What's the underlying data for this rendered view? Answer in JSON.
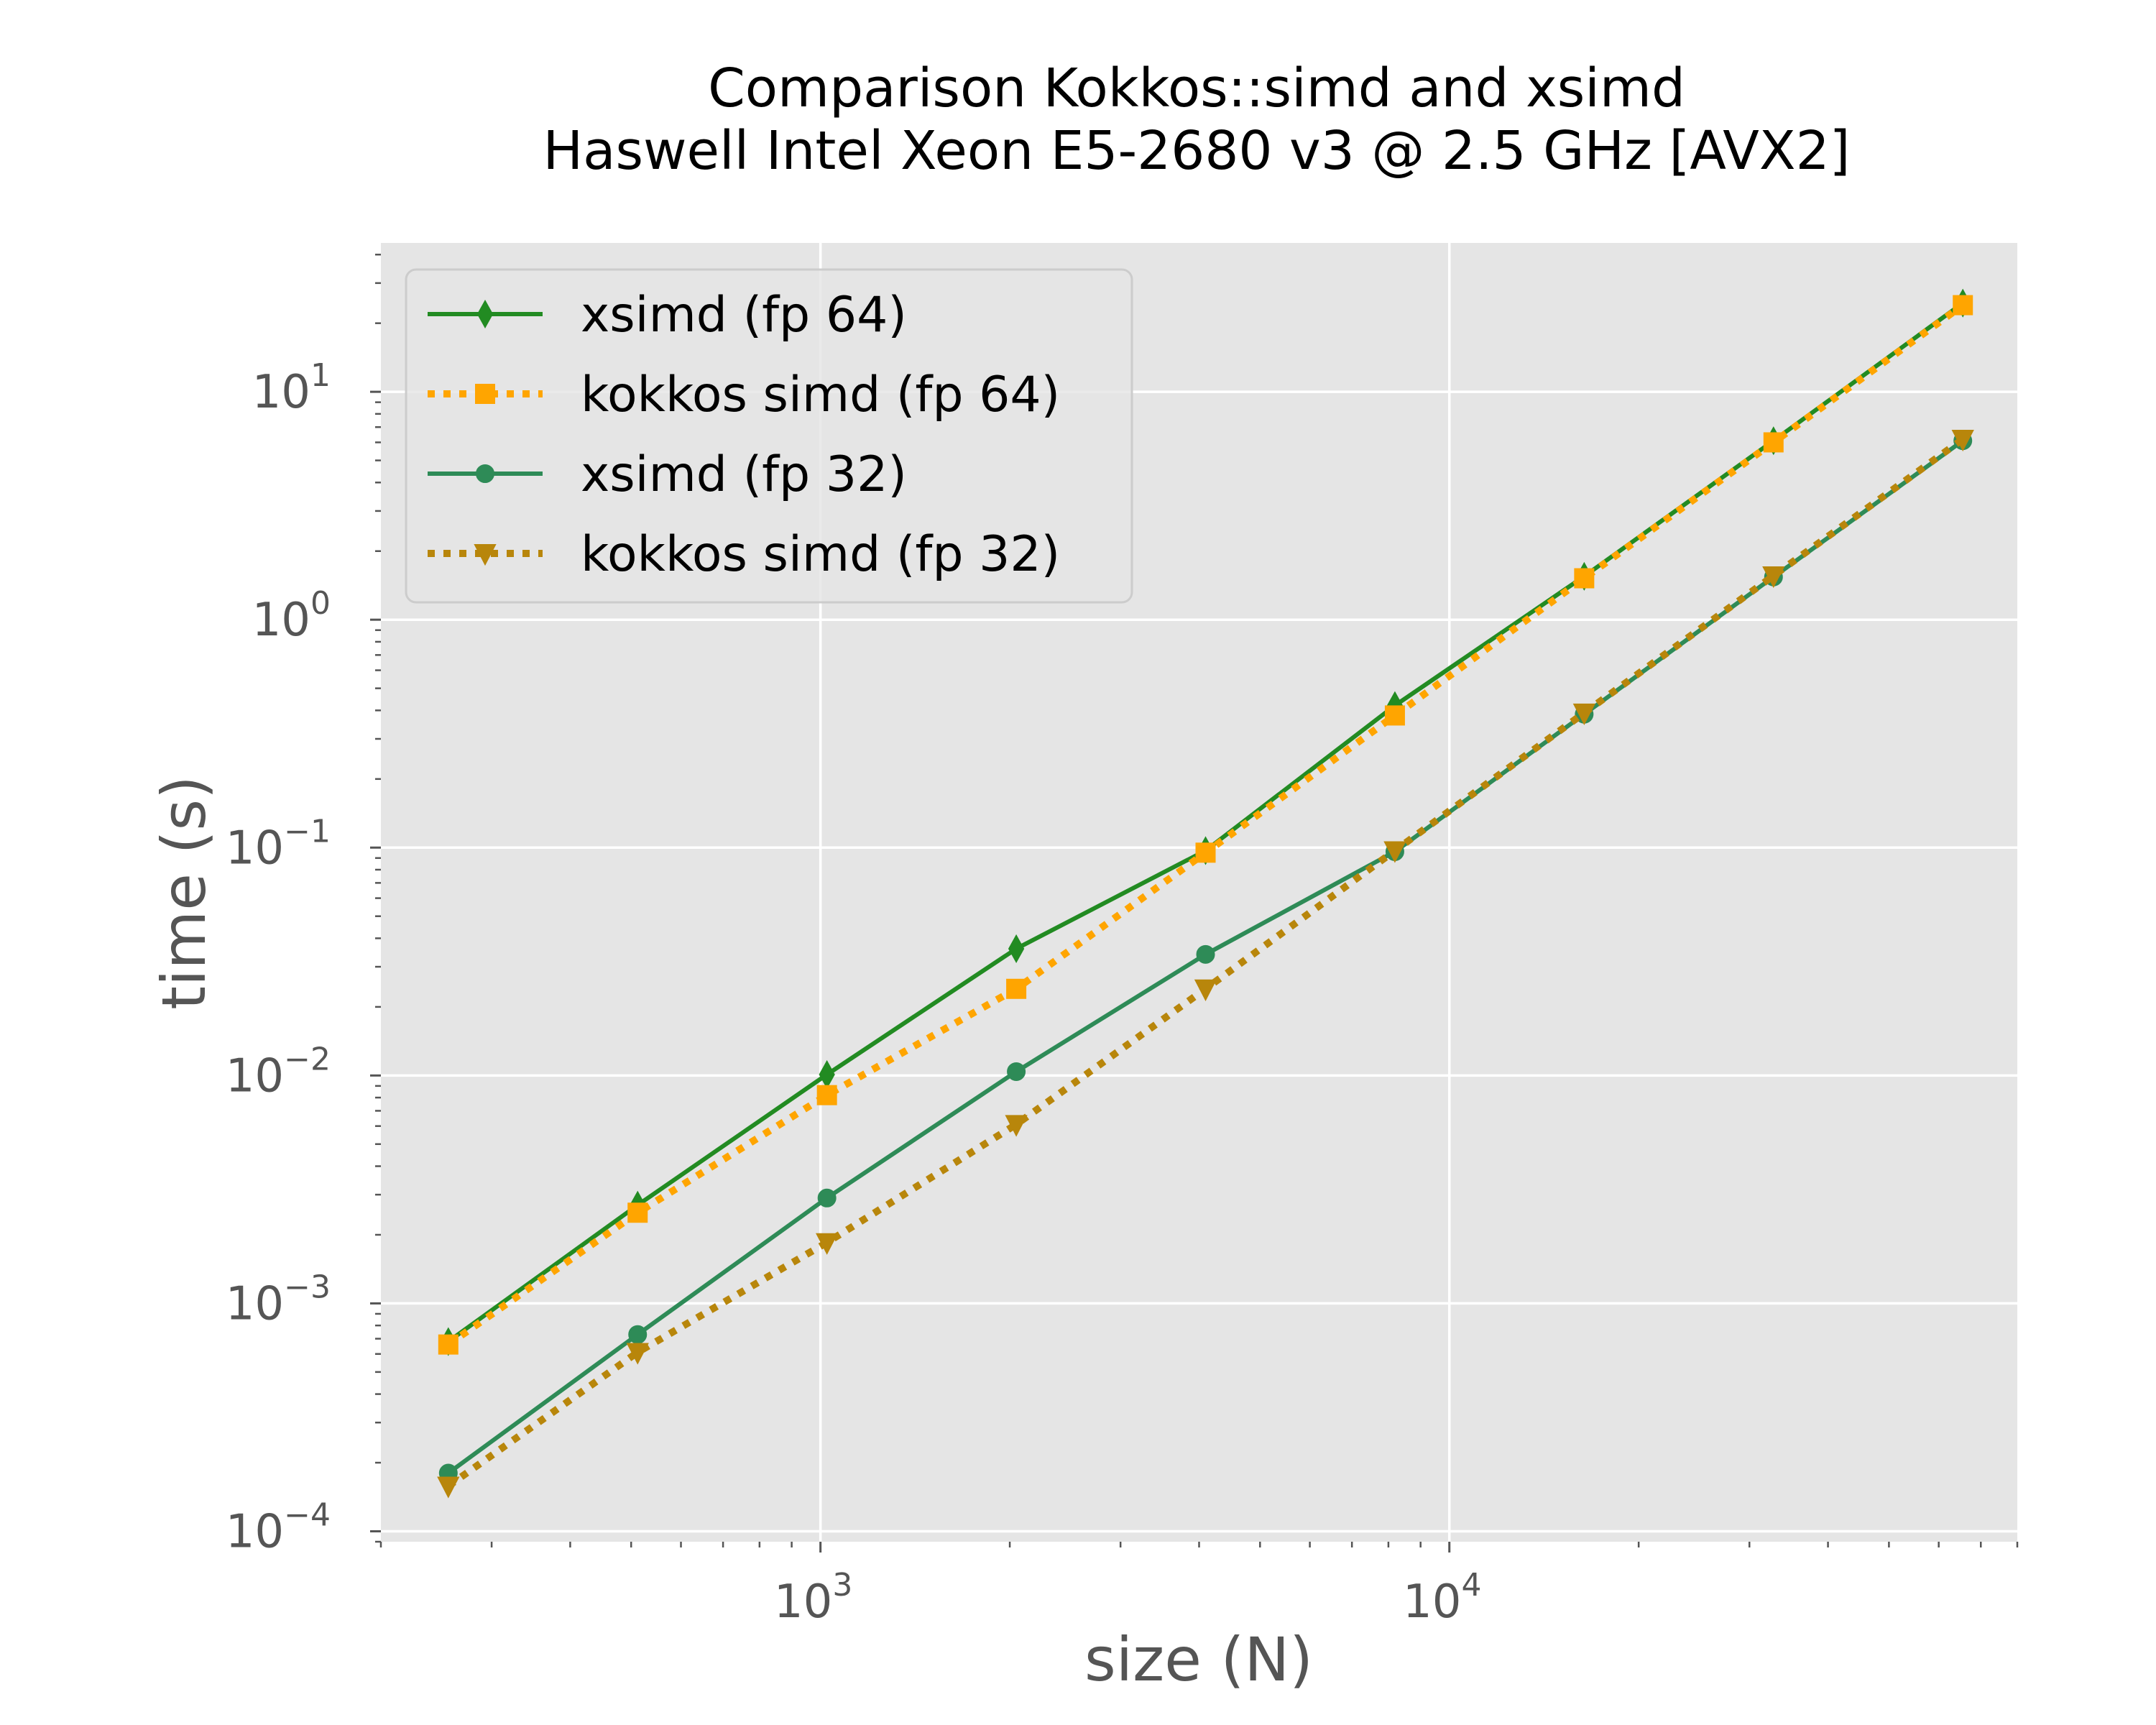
{
  "chart_data": {
    "type": "line",
    "title": "Comparison Kokkos::simd and xsimd",
    "subtitle": "Haswell Intel Xeon E5-2680 v3 @ 2.5 GHz [AVX2]",
    "xlabel": "size (N)",
    "ylabel": "time (s)",
    "xscale": "log",
    "yscale": "log",
    "xlim": [
      200,
      80000
    ],
    "ylim": [
      9e-05,
      45
    ],
    "x_major_ticks": [
      1000,
      10000
    ],
    "y_major_ticks": [
      0.0001,
      0.001,
      0.01,
      0.1,
      1,
      10
    ],
    "x": [
      256,
      512,
      1024,
      2048,
      4096,
      8192,
      16384,
      32768,
      65536
    ],
    "grid": true,
    "legend_position": "top-left",
    "series": [
      {
        "name": "xsimd (fp 64)",
        "color": "#228b22",
        "linestyle": "solid",
        "marker": "thin-diamond",
        "values": [
          0.00068,
          0.0027,
          0.0101,
          0.036,
          0.097,
          0.42,
          1.55,
          6.1,
          24.5
        ]
      },
      {
        "name": "kokkos simd (fp 64)",
        "color": "#ffa500",
        "linestyle": "dotted",
        "marker": "square",
        "values": [
          0.00066,
          0.0025,
          0.0082,
          0.024,
          0.095,
          0.38,
          1.52,
          6.0,
          24.0
        ]
      },
      {
        "name": "xsimd (fp 32)",
        "color": "#2e8b57",
        "linestyle": "solid",
        "marker": "circle",
        "values": [
          0.00018,
          0.00073,
          0.0029,
          0.0104,
          0.034,
          0.096,
          0.385,
          1.54,
          6.1
        ]
      },
      {
        "name": "kokkos simd (fp 32)",
        "color": "#b8860b",
        "linestyle": "dotted",
        "marker": "triangle-down",
        "values": [
          0.000158,
          0.00061,
          0.00185,
          0.0061,
          0.024,
          0.097,
          0.39,
          1.56,
          6.2
        ]
      }
    ]
  },
  "tick_labels": {
    "x": [
      {
        "base": "10",
        "exp": "3"
      },
      {
        "base": "10",
        "exp": "4"
      }
    ],
    "y": [
      {
        "base": "10",
        "exp": "−4"
      },
      {
        "base": "10",
        "exp": "−3"
      },
      {
        "base": "10",
        "exp": "−2"
      },
      {
        "base": "10",
        "exp": "−1"
      },
      {
        "base": "10",
        "exp": "0"
      },
      {
        "base": "10",
        "exp": "1"
      }
    ]
  },
  "colors": {
    "plot_background": "#e5e5e5",
    "grid": "#ffffff",
    "text": "#555555"
  }
}
